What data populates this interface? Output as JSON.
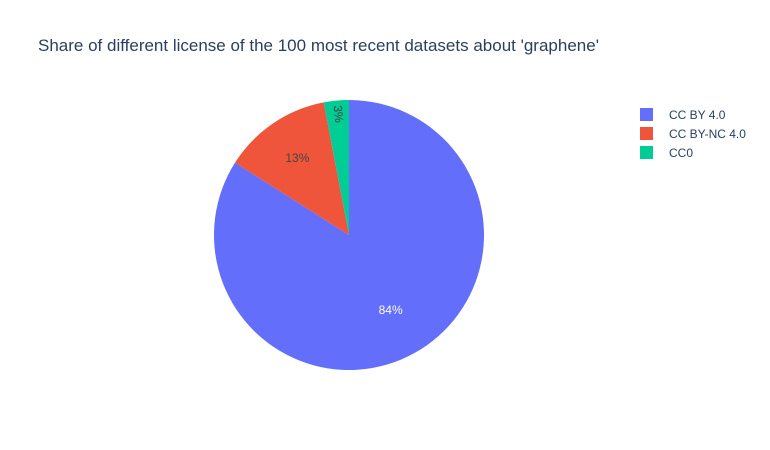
{
  "chart_data": {
    "type": "pie",
    "title": "Share of different license of the 100 most recent datasets about 'graphene'",
    "categories": [
      "CC BY 4.0",
      "CC BY-NC 4.0",
      "CC0"
    ],
    "values": [
      84,
      13,
      3
    ],
    "labels": [
      "84%",
      "13%",
      "3%"
    ],
    "colors": [
      "#636efa",
      "#EF553B",
      "#00cc96"
    ],
    "label_colors": [
      "#ffffff",
      "#444444",
      "#444444"
    ],
    "direction": "clockwise",
    "start_angle": "top",
    "legend_position": "top-right"
  }
}
